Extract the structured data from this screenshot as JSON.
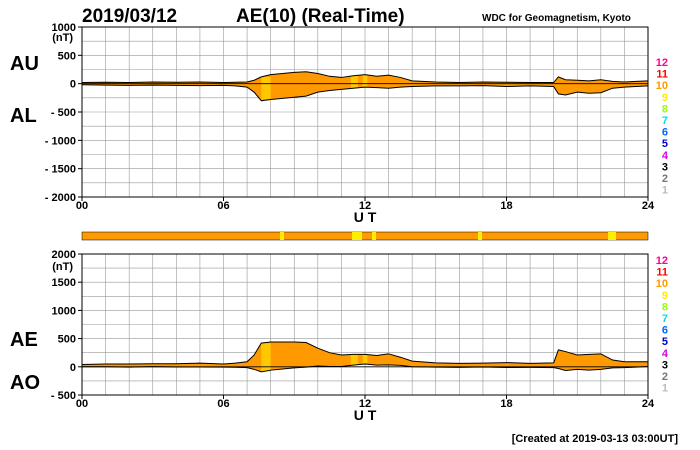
{
  "header": {
    "date": "2019/03/12",
    "index_title": "AE(10) (Real-Time)",
    "institution": "WDC for Geomagnetism, Kyoto"
  },
  "footer": {
    "created": "[Created at 2019-03-13 03:00UT]"
  },
  "colors": {
    "fill": "#FF9900",
    "curve": "#000000",
    "grid": "#999999",
    "highlight": "#FFEE00",
    "strip": "#FF9900"
  },
  "station_scale": [
    {
      "label": "12",
      "color": "#FF0099"
    },
    {
      "label": "11",
      "color": "#FF0000"
    },
    {
      "label": "10",
      "color": "#FF9900"
    },
    {
      "label": "9",
      "color": "#FFEE00"
    },
    {
      "label": "8",
      "color": "#99FF00"
    },
    {
      "label": "7",
      "color": "#00DDEE"
    },
    {
      "label": "6",
      "color": "#0066FF"
    },
    {
      "label": "5",
      "color": "#0000CC"
    },
    {
      "label": "4",
      "color": "#DD00DD"
    },
    {
      "label": "3",
      "color": "#000000"
    },
    {
      "label": "2",
      "color": "#777777"
    },
    {
      "label": "1",
      "color": "#BBBBBB"
    }
  ],
  "chart_data": [
    {
      "type": "area",
      "panel": "AU/AL",
      "upper_label": "AU",
      "lower_label": "AL",
      "unit": "(nT)",
      "xlabel": "U T",
      "xlim": [
        0,
        24
      ],
      "ylim": [
        -2000,
        1000
      ],
      "x_ticks": [
        "00",
        "06",
        "12",
        "18",
        "24"
      ],
      "y_ticks": [
        "1000",
        "500",
        "0",
        "- 500",
        "- 1000",
        "- 1500",
        "- 2000"
      ],
      "y_tick_values": [
        1000,
        500,
        0,
        -500,
        -1000,
        -1500,
        -2000
      ],
      "grid": true,
      "x": [
        0,
        1,
        2,
        3,
        4,
        5,
        6,
        6.5,
        7,
        7.3,
        7.6,
        8,
        8.5,
        9,
        9.5,
        10,
        10.5,
        11,
        11.5,
        12,
        12.5,
        13,
        13.5,
        14,
        15,
        16,
        17,
        18,
        19,
        20,
        20.2,
        20.5,
        21,
        21.5,
        22,
        22.5,
        23,
        23.5,
        24
      ],
      "series": [
        {
          "name": "AU",
          "values": [
            20,
            25,
            20,
            30,
            25,
            30,
            20,
            25,
            30,
            60,
            120,
            160,
            180,
            200,
            210,
            180,
            130,
            110,
            140,
            160,
            130,
            150,
            110,
            50,
            30,
            20,
            30,
            25,
            20,
            20,
            120,
            70,
            60,
            50,
            70,
            40,
            30,
            40,
            50
          ]
        },
        {
          "name": "AL",
          "values": [
            -20,
            -25,
            -30,
            -25,
            -30,
            -35,
            -30,
            -40,
            -60,
            -150,
            -300,
            -280,
            -260,
            -240,
            -220,
            -150,
            -120,
            -100,
            -80,
            -60,
            -70,
            -80,
            -60,
            -50,
            -40,
            -40,
            -35,
            -50,
            -40,
            -50,
            -180,
            -200,
            -150,
            -170,
            -160,
            -80,
            -60,
            -50,
            -40
          ]
        }
      ]
    },
    {
      "type": "area",
      "panel": "AE/AO",
      "upper_label": "AE",
      "lower_label": "AO",
      "unit": "(nT)",
      "xlabel": "U T",
      "xlim": [
        0,
        24
      ],
      "ylim": [
        -500,
        2000
      ],
      "x_ticks": [
        "00",
        "06",
        "12",
        "18",
        "24"
      ],
      "y_ticks": [
        "2000",
        "1500",
        "1000",
        "500",
        "0",
        "- 500"
      ],
      "y_tick_values": [
        2000,
        1500,
        1000,
        500,
        0,
        -500
      ],
      "grid": true,
      "x": [
        0,
        1,
        2,
        3,
        4,
        5,
        6,
        6.5,
        7,
        7.3,
        7.6,
        8,
        8.5,
        9,
        9.5,
        10,
        10.5,
        11,
        11.5,
        12,
        12.5,
        13,
        13.5,
        14,
        15,
        16,
        17,
        18,
        19,
        20,
        20.2,
        20.5,
        21,
        21.5,
        22,
        22.5,
        23,
        23.5,
        24
      ],
      "series": [
        {
          "name": "AE",
          "values": [
            40,
            50,
            50,
            55,
            55,
            65,
            50,
            65,
            90,
            210,
            420,
            440,
            440,
            440,
            430,
            330,
            250,
            210,
            220,
            220,
            200,
            230,
            170,
            100,
            70,
            60,
            65,
            75,
            60,
            70,
            300,
            270,
            210,
            220,
            230,
            120,
            90,
            90,
            90
          ]
        },
        {
          "name": "AO",
          "values": [
            0,
            0,
            -5,
            3,
            -3,
            -3,
            -5,
            -8,
            -15,
            -45,
            -90,
            -60,
            -40,
            -20,
            -5,
            15,
            5,
            5,
            30,
            50,
            30,
            35,
            25,
            0,
            -5,
            -10,
            -3,
            -13,
            -10,
            -15,
            -30,
            -65,
            -45,
            -60,
            -45,
            -20,
            -15,
            -5,
            5
          ]
        }
      ]
    }
  ]
}
